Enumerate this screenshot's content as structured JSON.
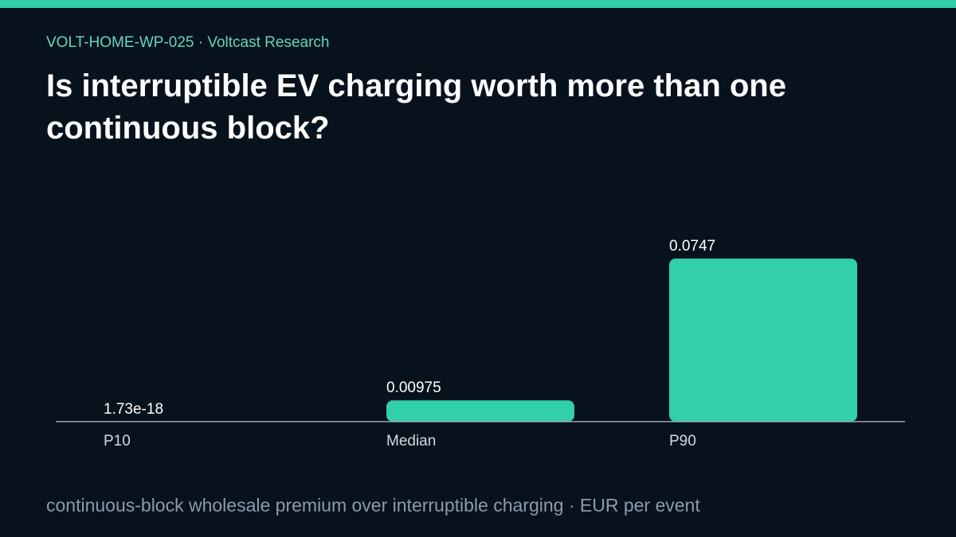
{
  "header": {
    "kicker": "VOLT-HOME-WP-025 · Voltcast Research",
    "title": "Is interruptible EV charging worth more than one continuous block?"
  },
  "caption": "continuous-block wholesale premium over interruptible charging · EUR per event",
  "colors": {
    "accent": "#31d0aa",
    "background": "#08121d",
    "axis": "#9aa7b4"
  },
  "chart_data": {
    "type": "bar",
    "categories": [
      "P10",
      "Median",
      "P90"
    ],
    "values": [
      1.73e-18,
      0.00975,
      0.0747
    ],
    "value_labels": [
      "1.73e-18",
      "0.00975",
      "0.0747"
    ],
    "ylim": [
      0,
      0.0747
    ],
    "grid": false,
    "legend": "none"
  }
}
